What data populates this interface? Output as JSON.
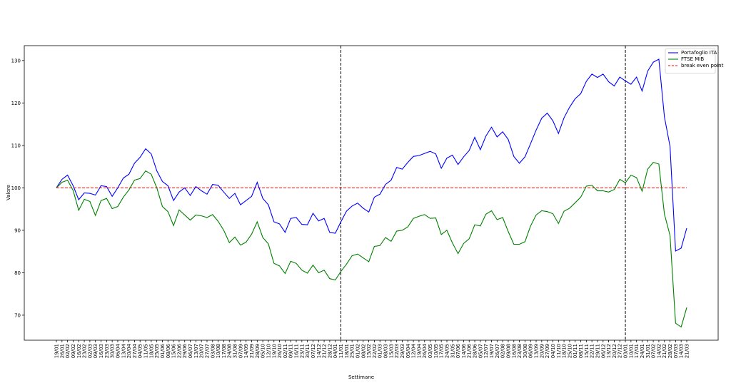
{
  "chart_data": {
    "type": "line",
    "xlabel": "Settimane",
    "ylabel": "Valore",
    "categories": [
      "19/01",
      "26/01",
      "02/02",
      "09/02",
      "16/02",
      "23/02",
      "02/03",
      "09/03",
      "16/03",
      "23/03",
      "30/03",
      "06/04",
      "13/04",
      "20/04",
      "27/04",
      "04/05",
      "11/05",
      "18/05",
      "25/05",
      "01/06",
      "08/06",
      "15/06",
      "22/06",
      "29/06",
      "06/07",
      "13/07",
      "20/07",
      "27/07",
      "03/08",
      "10/08",
      "17/08",
      "24/08",
      "31/08",
      "07/09",
      "14/09",
      "21/09",
      "28/09",
      "05/10",
      "12/10",
      "19/10",
      "26/10",
      "02/11",
      "09/11",
      "16/11",
      "23/11",
      "30/11",
      "07/12",
      "14/12",
      "21/12",
      "28/12",
      "04/01",
      "11/01",
      "18/01",
      "25/01",
      "01/02",
      "08/02",
      "15/02",
      "22/02",
      "01/03",
      "08/03",
      "15/03",
      "22/03",
      "29/03",
      "05/04",
      "12/04",
      "19/04",
      "26/04",
      "03/05",
      "10/05",
      "17/05",
      "24/05",
      "31/05",
      "07/06",
      "14/06",
      "21/06",
      "28/06",
      "05/07",
      "12/07",
      "19/07",
      "26/07",
      "02/08",
      "09/08",
      "16/08",
      "23/08",
      "30/08",
      "06/09",
      "13/09",
      "20/09",
      "27/09",
      "04/10",
      "11/10",
      "18/10",
      "25/10",
      "01/11",
      "08/11",
      "15/11",
      "22/11",
      "29/11",
      "06/12",
      "13/12",
      "20/12",
      "27/12",
      "03/01",
      "10/01",
      "17/01",
      "24/01",
      "31/01",
      "07/02",
      "14/02",
      "21/02",
      "28/02",
      "07/03",
      "14/03",
      "21/03"
    ],
    "series": [
      {
        "name": "Portafoglio ITA",
        "color": "#0000ff",
        "values": [
          100,
          102,
          103,
          100.5,
          97.2,
          98.8,
          98.7,
          98.3,
          100.5,
          100.3,
          98,
          100,
          102.3,
          103.2,
          105.8,
          107.2,
          109.2,
          108,
          104,
          101.5,
          100.5,
          97,
          99,
          100,
          98.2,
          100.3,
          99.3,
          98.5,
          100.8,
          100.6,
          99,
          97.5,
          98.7,
          96,
          97,
          98,
          101.3,
          97.5,
          96,
          92,
          91.5,
          89.5,
          92.8,
          93,
          91.4,
          91.3,
          94,
          92.2,
          92.8,
          89.5,
          89.3,
          92,
          94.5,
          95.7,
          96.4,
          95.2,
          94.3,
          97.8,
          98.5,
          100.8,
          101.8,
          104.8,
          104.4,
          106,
          107.4,
          107.6,
          108.1,
          108.6,
          108,
          104.6,
          107,
          107.7,
          105.5,
          107.3,
          108.8,
          111.9,
          109,
          112.2,
          114.3,
          112,
          113.2,
          111.4,
          107.4,
          105.8,
          107.3,
          110.4,
          113.6,
          116.4,
          117.6,
          115.8,
          112.8,
          116.5,
          119,
          121,
          122.2,
          125.1,
          126.8,
          126,
          126.8,
          125,
          124,
          126.1,
          125.2,
          124.4,
          126.1,
          122.8,
          127.5,
          129.6,
          130.3,
          116.7,
          109.8,
          85.1,
          85.8,
          90.5
        ]
      },
      {
        "name": "FTSE MIB",
        "color": "#008000",
        "values": [
          100,
          101.3,
          101.8,
          99.4,
          94.7,
          97.3,
          96.8,
          93.5,
          97,
          97.5,
          95.1,
          95.6,
          97.8,
          99.5,
          101.8,
          102.2,
          104,
          103.2,
          100,
          95.6,
          94.4,
          91.1,
          94.8,
          93.6,
          92.4,
          93.6,
          93.4,
          93,
          93.7,
          92.1,
          90,
          87.1,
          88.4,
          86.5,
          87.2,
          89.1,
          92,
          88.3,
          86.8,
          82.2,
          81.6,
          79.8,
          82.7,
          82.2,
          80.6,
          79.9,
          81.8,
          80,
          80.6,
          78.6,
          78.3,
          80.3,
          82,
          84,
          84.4,
          83.5,
          82.6,
          86.2,
          86.4,
          88.3,
          87.4,
          89.8,
          90,
          90.8,
          92.8,
          93.3,
          93.7,
          92.8,
          92.9,
          89,
          90,
          87,
          84.5,
          86.9,
          88,
          91.3,
          91,
          93.8,
          94.6,
          92.5,
          93,
          89.7,
          86.7,
          86.7,
          87.3,
          91,
          93.6,
          94.6,
          94.4,
          93.9,
          91.6,
          94.5,
          95.2,
          96.5,
          97.8,
          100.4,
          100.6,
          99.3,
          99.3,
          99,
          99.6,
          102,
          101.2,
          103,
          102.4,
          99.2,
          104.4,
          106,
          105.6,
          93.8,
          88.8,
          68.1,
          67.2,
          71.8
        ]
      }
    ],
    "reference": {
      "name": "break even point",
      "value": 100,
      "color": "#ff0000"
    },
    "vlines": [
      "11/01",
      "03/01"
    ],
    "ylim": [
      64.1,
      133.5
    ],
    "yticks": [
      70,
      80,
      90,
      100,
      110,
      120,
      130
    ],
    "legend": "upper right"
  }
}
